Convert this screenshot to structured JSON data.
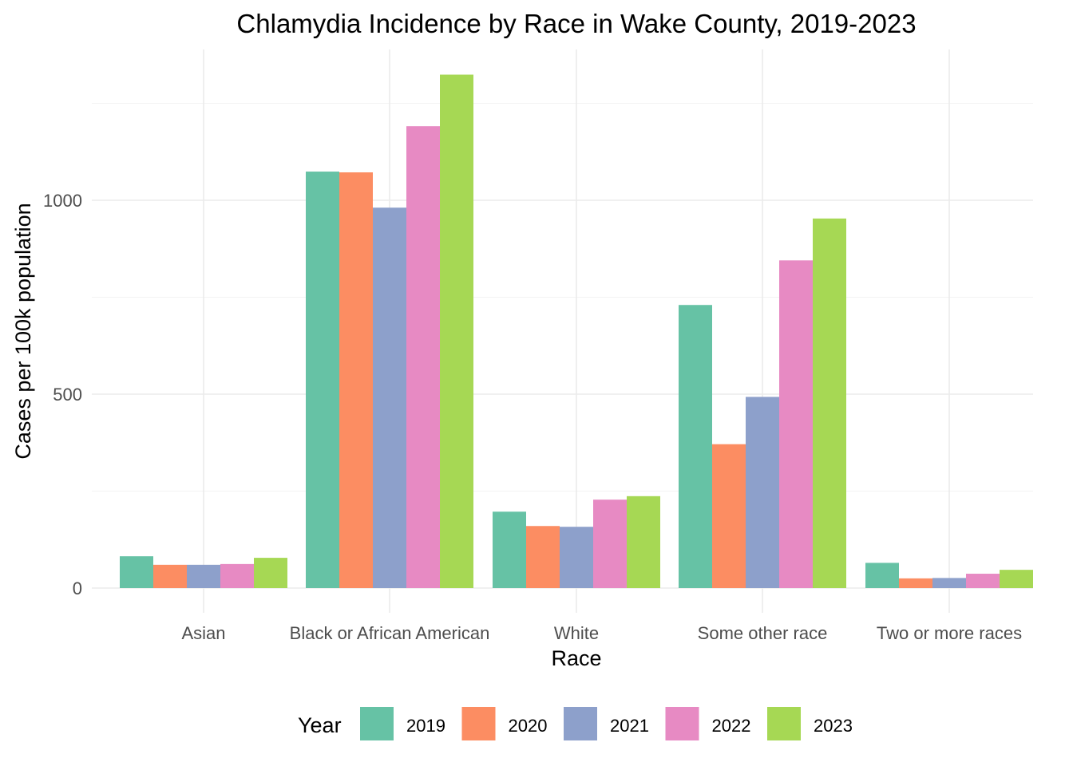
{
  "chart_data": {
    "type": "bar",
    "title": "Chlamydia Incidence by Race in Wake County, 2019-2023",
    "xlabel": "Race",
    "ylabel": "Cases per 100k population",
    "categories": [
      "Asian",
      "Black or African American",
      "White",
      "Some other race",
      "Two or more races"
    ],
    "series": [
      {
        "name": "2019",
        "color": "#66c2a5",
        "values": [
          82,
          1074,
          197,
          730,
          65
        ]
      },
      {
        "name": "2020",
        "color": "#fc8d62",
        "values": [
          60,
          1072,
          160,
          371,
          25
        ]
      },
      {
        "name": "2021",
        "color": "#8da0cb",
        "values": [
          60,
          981,
          158,
          493,
          26
        ]
      },
      {
        "name": "2022",
        "color": "#e78ac3",
        "values": [
          62,
          1191,
          228,
          845,
          37
        ]
      },
      {
        "name": "2023",
        "color": "#a6d854",
        "values": [
          78,
          1324,
          237,
          953,
          47
        ]
      }
    ],
    "yticks": [
      0,
      500,
      1000
    ],
    "ylim": [
      -30,
      1390
    ],
    "grid": true,
    "legend": {
      "title": "Year",
      "position": "bottom"
    }
  }
}
